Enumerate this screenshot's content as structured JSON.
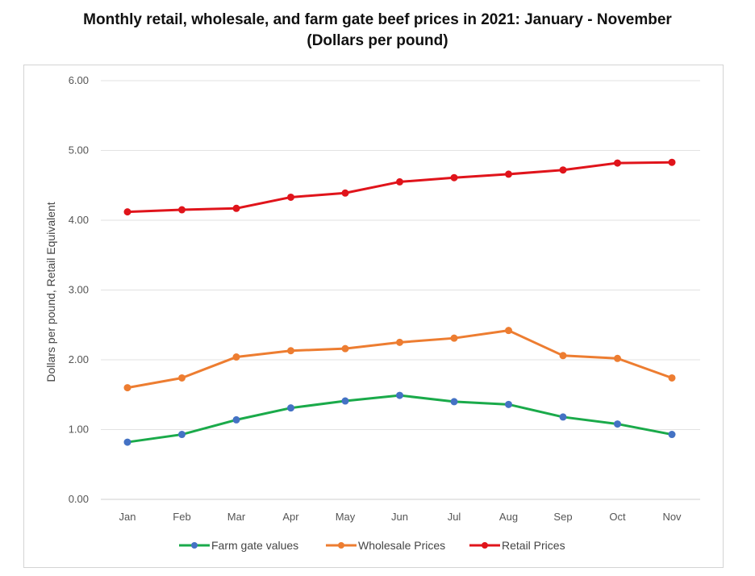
{
  "chart_data": {
    "type": "line",
    "title": "Monthly retail, wholesale, and farm gate beef prices in 2021: January - November",
    "subtitle": "(Dollars per pound)",
    "xlabel": "",
    "ylabel": "Dollars per pound, Retail Equivalent",
    "categories": [
      "Jan",
      "Feb",
      "Mar",
      "Apr",
      "May",
      "Jun",
      "Jul",
      "Aug",
      "Sep",
      "Oct",
      "Nov"
    ],
    "ylim": [
      0,
      6
    ],
    "yticks": [
      "0.00",
      "1.00",
      "2.00",
      "3.00",
      "4.00",
      "5.00",
      "6.00"
    ],
    "grid": true,
    "legend_position": "bottom",
    "series": [
      {
        "name": "Farm gate values",
        "color": "#1aaa4a",
        "marker_color": "#4472c4",
        "values": [
          0.82,
          0.93,
          1.14,
          1.31,
          1.41,
          1.49,
          1.4,
          1.36,
          1.18,
          1.08,
          0.93
        ]
      },
      {
        "name": "Wholesale Prices",
        "color": "#ed7d31",
        "marker_color": "#ed7d31",
        "values": [
          1.6,
          1.74,
          2.04,
          2.13,
          2.16,
          2.25,
          2.31,
          2.42,
          2.06,
          2.02,
          1.74
        ]
      },
      {
        "name": "Retail Prices",
        "color": "#e0141b",
        "marker_color": "#e0141b",
        "values": [
          4.12,
          4.15,
          4.17,
          4.33,
          4.39,
          4.55,
          4.61,
          4.66,
          4.72,
          4.82,
          4.83
        ]
      }
    ]
  }
}
